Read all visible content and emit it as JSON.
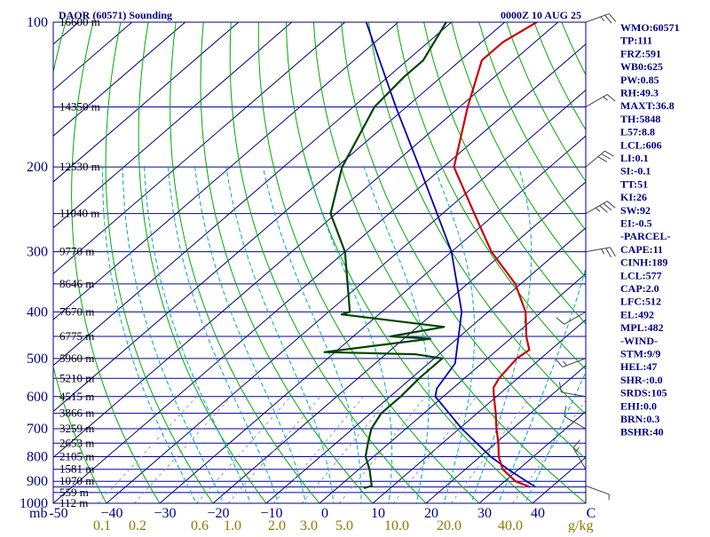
{
  "header": {
    "station": "DAOR (60571) Sounding",
    "time": "0000Z 10 AUG 25"
  },
  "indices": [
    "WMO:60571",
    "TP:111",
    "FRZ:591",
    "WB0:625",
    "PW:0.85",
    "RH:49.3",
    "MAXT:36.8",
    "TH:5848",
    "L57:8.8",
    "LCL:606",
    "LI:0.1",
    "SI:-0.1",
    "TT:51",
    "KI:26",
    "SW:92",
    "EI:-0.5",
    "-PARCEL-",
    "CAPE:11",
    "CINH:189",
    "LCL:577",
    "CAP:2.0",
    "LFC:512",
    "EL:492",
    "MPL:482",
    "-WIND-",
    "STM:9/9",
    "HEL:47",
    "SHR-:0.0",
    "SRDS:105",
    "EHI:0.0",
    "BRN:0.3",
    "BSHR:40"
  ],
  "axis_unit_left": "mb",
  "axis_unit_right": "g/kg",
  "colors": {
    "frame": "#000080",
    "isobar": "#0000aa",
    "isotherm": "#000080",
    "dry_adiabat": "#00aa00",
    "moist_adiabat": "#00aaaa",
    "mixing_ratio": "#999999",
    "temperature": "#cc0000",
    "dewpoint": "#004400",
    "parcel": "#0000aa",
    "wind": "#444444"
  },
  "chart_data": {
    "type": "skew-t log-p",
    "title": "DAOR (60571) Sounding",
    "pressure_levels": [
      100,
      150,
      200,
      250,
      300,
      350,
      400,
      450,
      500,
      550,
      600,
      650,
      700,
      750,
      800,
      850,
      900,
      925,
      950,
      1000
    ],
    "pressure_tick_labels": [
      "100",
      "200",
      "300",
      "400",
      "500",
      "600",
      "700",
      "800",
      "900",
      "1000"
    ],
    "height_labels": [
      {
        "p": 100,
        "label": "16600 m"
      },
      {
        "p": 150,
        "label": "14350 m"
      },
      {
        "p": 200,
        "label": "12530 m"
      },
      {
        "p": 250,
        "label": "11040 m"
      },
      {
        "p": 300,
        "label": "9770 m"
      },
      {
        "p": 350,
        "label": "8646 m"
      },
      {
        "p": 400,
        "label": "7670 m"
      },
      {
        "p": 450,
        "label": "6775 m"
      },
      {
        "p": 500,
        "label": "5960 m"
      },
      {
        "p": 550,
        "label": "5210 m"
      },
      {
        "p": 600,
        "label": "4515 m"
      },
      {
        "p": 650,
        "label": "3866 m"
      },
      {
        "p": 700,
        "label": "3259 m"
      },
      {
        "p": 750,
        "label": "2653 m"
      },
      {
        "p": 800,
        "label": "2105 m"
      },
      {
        "p": 850,
        "label": "1581 m"
      },
      {
        "p": 900,
        "label": "1070 m"
      },
      {
        "p": 950,
        "label": "559 m"
      },
      {
        "p": 1000,
        "label": "112 m"
      }
    ],
    "temperature_tick_labels": [
      "-50",
      "−40",
      "−30",
      "−20",
      "−10",
      "0",
      "10",
      "20",
      "30",
      "40",
      "C"
    ],
    "mixing_ratio_tick_labels": [
      "0.1",
      "0.2",
      "0.6",
      "1.0",
      "2.0",
      "3.0",
      "5.0",
      "10.0",
      "20.0",
      "40.0"
    ],
    "temperature_profile": [
      {
        "p": 925,
        "t": 36.0
      },
      {
        "p": 900,
        "t": 32.0
      },
      {
        "p": 850,
        "t": 27.0
      },
      {
        "p": 800,
        "t": 23.5
      },
      {
        "p": 750,
        "t": 20.5
      },
      {
        "p": 700,
        "t": 17.0
      },
      {
        "p": 650,
        "t": 13.5
      },
      {
        "p": 600,
        "t": 9.5
      },
      {
        "p": 575,
        "t": 7.5
      },
      {
        "p": 550,
        "t": 6.5
      },
      {
        "p": 500,
        "t": 5.5
      },
      {
        "p": 480,
        "t": 6.0
      },
      {
        "p": 450,
        "t": 2.5
      },
      {
        "p": 400,
        "t": -3.0
      },
      {
        "p": 350,
        "t": -11.0
      },
      {
        "p": 300,
        "t": -22.5
      },
      {
        "p": 250,
        "t": -34.0
      },
      {
        "p": 200,
        "t": -48.0
      },
      {
        "p": 150,
        "t": -58.5
      },
      {
        "p": 120,
        "t": -66.0
      },
      {
        "p": 110,
        "t": -66.0
      },
      {
        "p": 100,
        "t": -64.0
      }
    ],
    "dewpoint_profile": [
      {
        "p": 930,
        "t": 5.0
      },
      {
        "p": 920,
        "t": 6.0
      },
      {
        "p": 850,
        "t": 2.0
      },
      {
        "p": 800,
        "t": -1.5
      },
      {
        "p": 750,
        "t": -4.0
      },
      {
        "p": 700,
        "t": -6.5
      },
      {
        "p": 650,
        "t": -8.0
      },
      {
        "p": 600,
        "t": -8.0
      },
      {
        "p": 550,
        "t": -8.5
      },
      {
        "p": 500,
        "t": -8.5
      },
      {
        "p": 490,
        "t": -14.5
      },
      {
        "p": 485,
        "t": -32.0
      },
      {
        "p": 455,
        "t": -15.0
      },
      {
        "p": 450,
        "t": -23.0
      },
      {
        "p": 430,
        "t": -15.0
      },
      {
        "p": 405,
        "t": -37.0
      },
      {
        "p": 400,
        "t": -36.0
      },
      {
        "p": 300,
        "t": -50.0
      },
      {
        "p": 250,
        "t": -61.0
      },
      {
        "p": 200,
        "t": -69.0
      },
      {
        "p": 150,
        "t": -76.0
      },
      {
        "p": 130,
        "t": -77.0
      },
      {
        "p": 120,
        "t": -77.0
      },
      {
        "p": 100,
        "t": -81.0
      }
    ],
    "parcel_profile": [
      {
        "p": 925,
        "t": 37.0
      },
      {
        "p": 850,
        "t": 28.0
      },
      {
        "p": 800,
        "t": 22.0
      },
      {
        "p": 700,
        "t": 10.5
      },
      {
        "p": 600,
        "t": -1.5
      },
      {
        "p": 577,
        "t": -3.0
      },
      {
        "p": 512,
        "t": -5.0
      },
      {
        "p": 400,
        "t": -15.0
      },
      {
        "p": 300,
        "t": -30.0
      },
      {
        "p": 250,
        "t": -41.0
      },
      {
        "p": 200,
        "t": -54.5
      },
      {
        "p": 150,
        "t": -72.0
      },
      {
        "p": 100,
        "t": -96.0
      }
    ],
    "wind_barbs": [
      {
        "p": 920,
        "dir": 110,
        "spd": 5
      },
      {
        "p": 850,
        "dir": 330,
        "spd": 15
      },
      {
        "p": 700,
        "dir": 300,
        "spd": 10
      },
      {
        "p": 600,
        "dir": 280,
        "spd": 10
      },
      {
        "p": 500,
        "dir": 250,
        "spd": 15
      },
      {
        "p": 400,
        "dir": 240,
        "spd": 10
      },
      {
        "p": 300,
        "dir": 80,
        "spd": 25
      },
      {
        "p": 250,
        "dir": 60,
        "spd": 35
      },
      {
        "p": 200,
        "dir": 50,
        "spd": 30
      },
      {
        "p": 150,
        "dir": 60,
        "spd": 15
      },
      {
        "p": 100,
        "dir": 70,
        "spd": 25
      }
    ],
    "temperature_range": [
      -50,
      50
    ],
    "pressure_range": [
      100,
      1000
    ],
    "grid": true
  }
}
